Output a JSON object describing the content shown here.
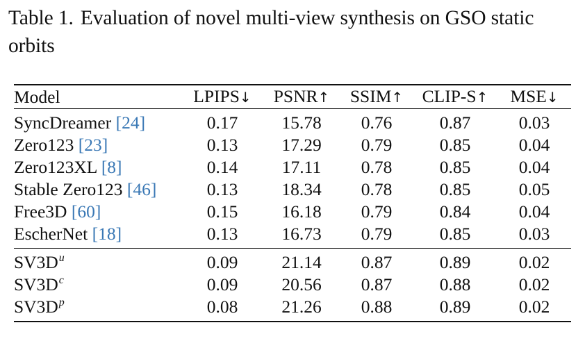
{
  "caption": {
    "label": "Table 1.",
    "text": "Evaluation of novel multi-view synthesis on GSO static orbits"
  },
  "table": {
    "headers": {
      "model": "Model",
      "lpips": "LPIPS",
      "lpips_arrow": "↓",
      "psnr": "PSNR",
      "psnr_arrow": "↑",
      "ssim": "SSIM",
      "ssim_arrow": "↑",
      "clip": "CLIP-S",
      "clip_arrow": "↑",
      "mse": "MSE",
      "mse_arrow": "↓"
    },
    "baselines": [
      {
        "name": "SyncDreamer",
        "ref": "[24]",
        "lpips": "0.17",
        "psnr": "15.78",
        "ssim": "0.76",
        "clip": "0.87",
        "mse": "0.03"
      },
      {
        "name": "Zero123",
        "ref": "[23]",
        "lpips": "0.13",
        "psnr": "17.29",
        "ssim": "0.79",
        "clip": "0.85",
        "mse": "0.04"
      },
      {
        "name": "Zero123XL",
        "ref": "[8]",
        "lpips": "0.14",
        "psnr": "17.11",
        "ssim": "0.78",
        "clip": "0.85",
        "mse": "0.04"
      },
      {
        "name": "Stable Zero123",
        "ref": "[46]",
        "lpips": "0.13",
        "psnr": "18.34",
        "ssim": "0.78",
        "clip": "0.85",
        "mse": "0.05"
      },
      {
        "name": "Free3D",
        "ref": "[60]",
        "lpips": "0.15",
        "psnr": "16.18",
        "ssim": "0.79",
        "clip": "0.84",
        "mse": "0.04"
      },
      {
        "name": "EscherNet",
        "ref": "[18]",
        "lpips": "0.13",
        "psnr": "16.73",
        "ssim": "0.79",
        "clip": "0.85",
        "mse": "0.03"
      }
    ],
    "ours": [
      {
        "name": "SV3D",
        "sup": "u",
        "lpips": "0.09",
        "psnr": "21.14",
        "ssim": "0.87",
        "clip": "0.89",
        "mse": "0.02"
      },
      {
        "name": "SV3D",
        "sup": "c",
        "lpips": "0.09",
        "psnr": "20.56",
        "ssim": "0.87",
        "clip": "0.88",
        "mse": "0.02"
      },
      {
        "name": "SV3D",
        "sup": "p",
        "lpips": "0.08",
        "psnr": "21.26",
        "ssim": "0.88",
        "clip": "0.89",
        "mse": "0.02"
      }
    ]
  }
}
